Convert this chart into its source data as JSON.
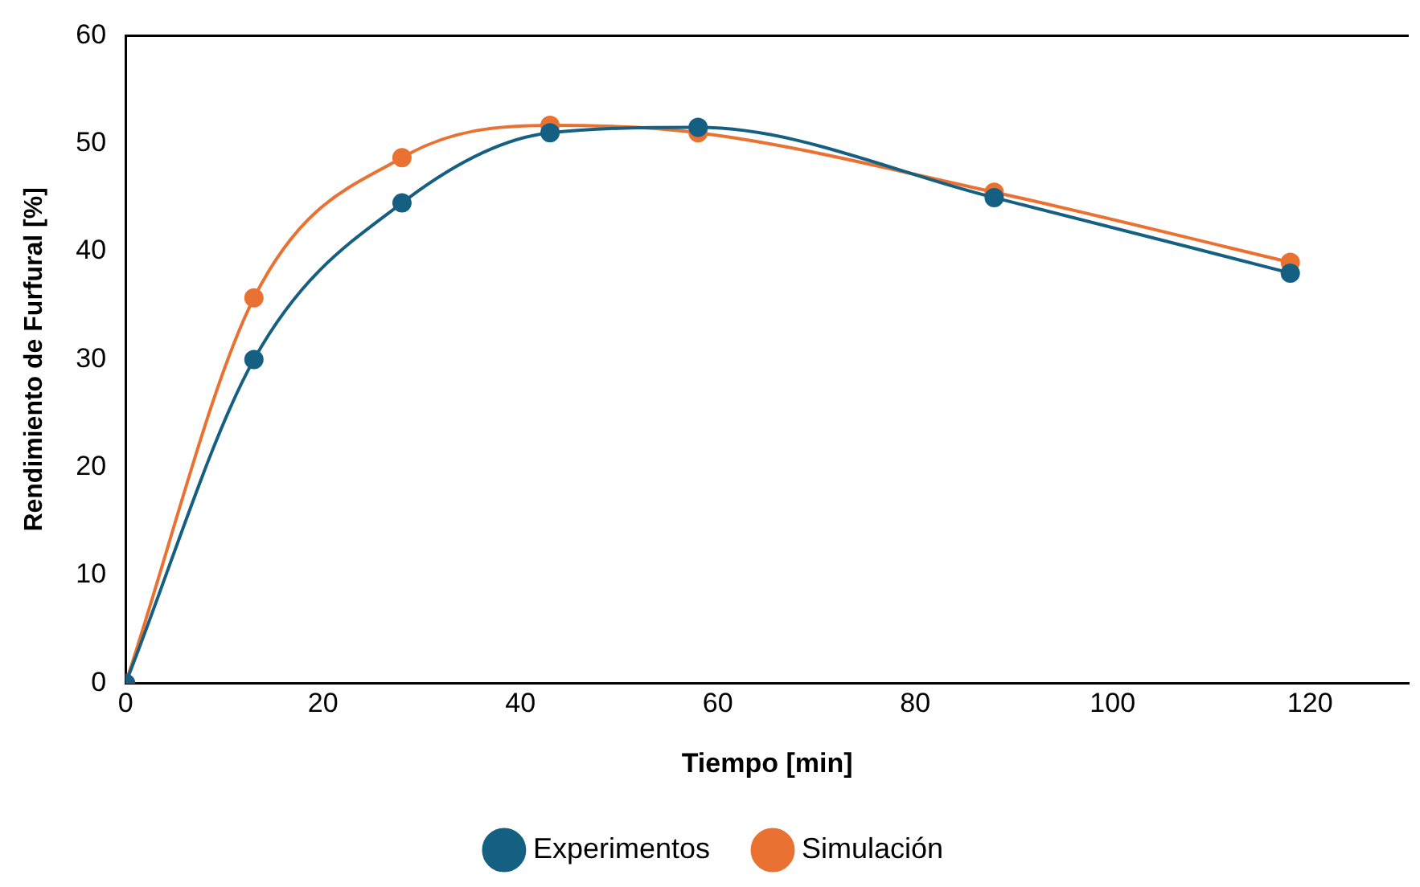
{
  "chart_data": {
    "type": "line",
    "xlabel": "Tiempo [min]",
    "ylabel": "Rendimiento de Furfural [%]",
    "x": [
      0,
      13,
      28,
      43,
      58,
      88,
      118
    ],
    "series": [
      {
        "name": "Experimentos",
        "color": "#156082",
        "values": [
          0,
          30,
          44.5,
          51,
          51.5,
          45,
          38
        ]
      },
      {
        "name": "Simulación",
        "color": "#e97132",
        "values": [
          0,
          35.7,
          48.7,
          51.7,
          51,
          45.5,
          39
        ]
      }
    ],
    "xlim": [
      0,
      130
    ],
    "xticks": [
      0,
      20,
      40,
      60,
      80,
      100,
      120
    ],
    "ylim": [
      0,
      60
    ],
    "yticks": [
      0,
      10,
      20,
      30,
      40,
      50,
      60
    ],
    "grid": false,
    "legend": "bottom",
    "marker": "circle",
    "line_style": "solid"
  }
}
